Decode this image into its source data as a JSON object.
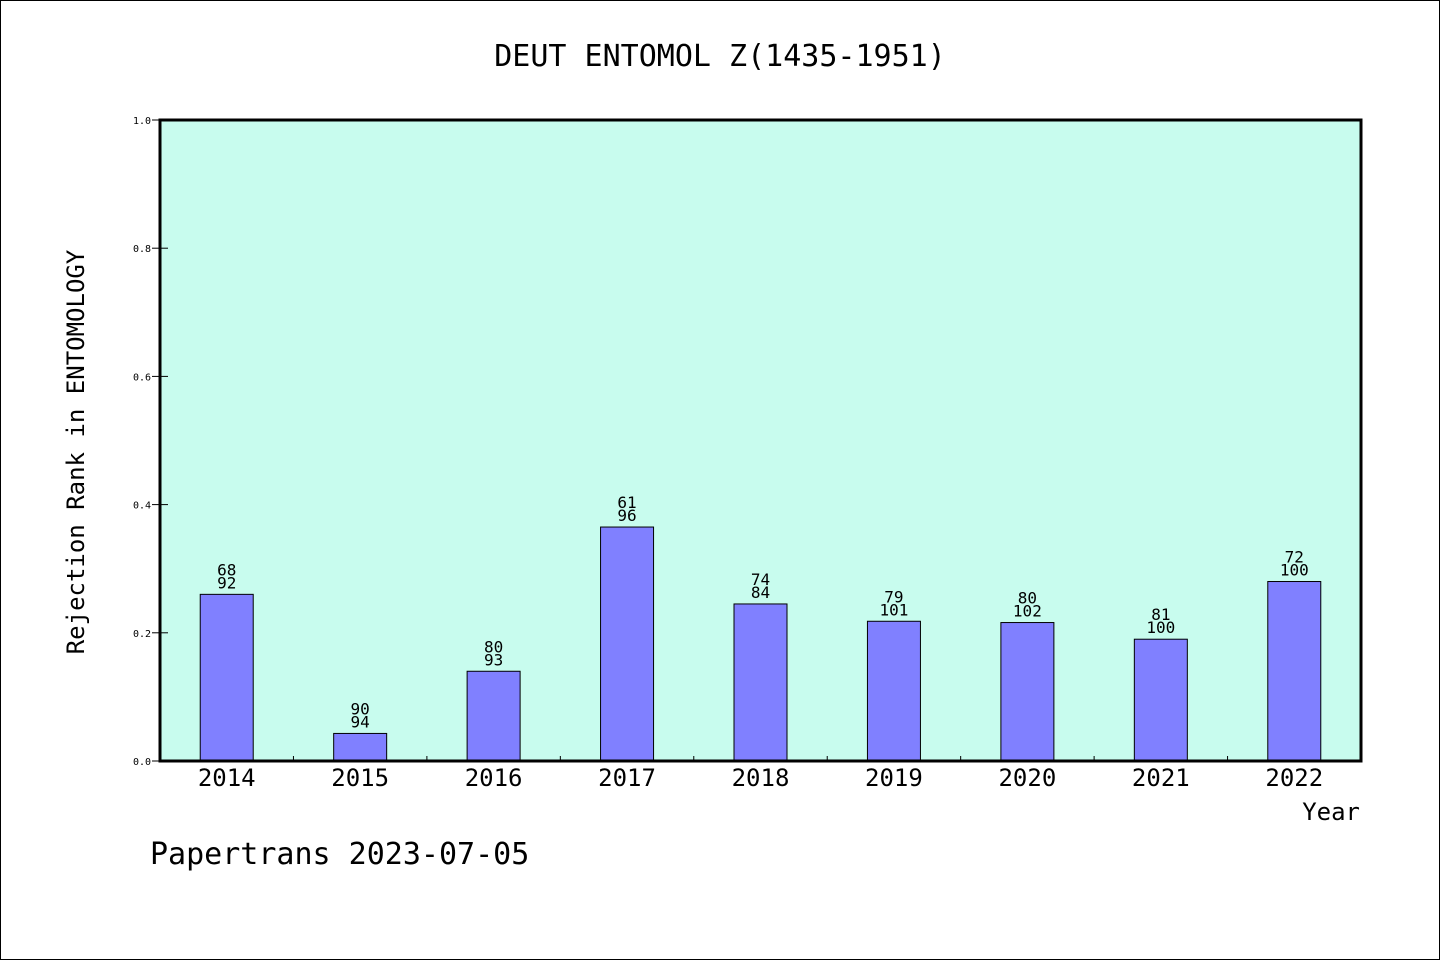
{
  "chart_data": {
    "type": "bar",
    "title": "DEUT ENTOMOL Z(1435-1951)",
    "xlabel": "Year",
    "ylabel": "Rejection Rank in ENTOMOLOGY",
    "ylim": [
      0,
      1.0
    ],
    "yticks": [
      "0.0",
      "0.2",
      "0.4",
      "0.6",
      "0.8",
      "1.0"
    ],
    "categories": [
      "2014",
      "2015",
      "2016",
      "2017",
      "2018",
      "2019",
      "2020",
      "2021",
      "2022"
    ],
    "values": [
      0.26,
      0.043,
      0.14,
      0.365,
      0.245,
      0.218,
      0.216,
      0.19,
      0.28
    ],
    "bar_labels_top": [
      "68",
      "90",
      "80",
      "61",
      "74",
      "79",
      "80",
      "81",
      "72"
    ],
    "bar_labels_bottom": [
      "92",
      "94",
      "93",
      "96",
      "84",
      "101",
      "102",
      "100",
      "100"
    ],
    "grid": false,
    "colors": {
      "plot_background": "#c8fcee",
      "bar": "#8080ff"
    }
  },
  "footer": "Papertrans 2023-07-05"
}
